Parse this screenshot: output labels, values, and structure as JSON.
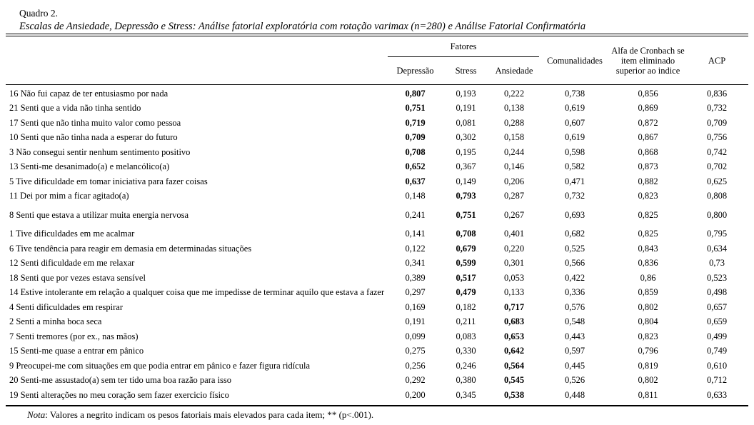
{
  "colors": {
    "text": "#000000",
    "background": "#ffffff"
  },
  "caption": {
    "number": "Quadro 2.",
    "title": "Escalas de Ansiedade, Depressão e Stress: Análise fatorial exploratória com rotação varimax (n=280) e Análise Fatorial Confirmatória"
  },
  "header": {
    "factors_group": "Fatores",
    "columns": [
      "Depressão",
      "Stress",
      "Ansiedade",
      "Comunalidades",
      "Alfa de Cronbach se item eliminado superior ao indice",
      "ACP"
    ]
  },
  "rows": [
    {
      "item": "16 Não fui capaz de ter entusiasmo por nada",
      "values": [
        "0,807",
        "0,193",
        "0,222",
        "0,738",
        "0,856",
        "0,836"
      ],
      "bold_index": 0
    },
    {
      "item": "21 Senti que a vida não tinha sentido",
      "values": [
        "0,751",
        "0,191",
        "0,138",
        "0,619",
        "0,869",
        "0,732"
      ],
      "bold_index": 0
    },
    {
      "item": "17 Senti que não tinha muito valor como pessoa",
      "values": [
        "0,719",
        "0,081",
        "0,288",
        "0,607",
        "0,872",
        "0,709"
      ],
      "bold_index": 0
    },
    {
      "item": "10 Senti que não tinha nada a esperar do futuro",
      "values": [
        "0,709",
        "0,302",
        "0,158",
        "0,619",
        "0,867",
        "0,756"
      ],
      "bold_index": 0
    },
    {
      "item": "3 Não consegui sentir nenhum sentimento positivo",
      "values": [
        "0,708",
        "0,195",
        "0,244",
        "0,598",
        "0,868",
        "0,742"
      ],
      "bold_index": 0
    },
    {
      "item": "13 Senti-me desanimado(a) e melancólico(a)",
      "values": [
        "0,652",
        "0,367",
        "0,146",
        "0,582",
        "0,873",
        "0,702"
      ],
      "bold_index": 0
    },
    {
      "item": "5 Tive dificuldade em tomar iniciativa para fazer coisas",
      "values": [
        "0,637",
        "0,149",
        "0,206",
        "0,471",
        "0,882",
        "0,625"
      ],
      "bold_index": 0
    },
    {
      "item": "11 Dei por mim a ficar agitado(a)",
      "values": [
        "0,148",
        "0,793",
        "0,287",
        "0,732",
        "0,823",
        "0,808"
      ],
      "bold_index": 1
    },
    {
      "item": "8 Senti que estava a utilizar muita energia nervosa",
      "values": [
        "0,241",
        "0,751",
        "0,267",
        "0,693",
        "0,825",
        "0,800"
      ],
      "bold_index": 1
    },
    {
      "item": "1 Tive dificuldades em me acalmar",
      "values": [
        "0,141",
        "0,708",
        "0,401",
        "0,682",
        "0,825",
        "0,795"
      ],
      "bold_index": 1
    },
    {
      "item": "6 Tive tendência para reagir em demasia em determinadas situações",
      "values": [
        "0,122",
        "0,679",
        "0,220",
        "0,525",
        "0,843",
        "0,634"
      ],
      "bold_index": 1
    },
    {
      "item": "12 Senti dificuldade em me relaxar",
      "values": [
        "0,341",
        "0,599",
        "0,301",
        "0,566",
        "0,836",
        "0,73"
      ],
      "bold_index": 1
    },
    {
      "item": "18 Senti que por vezes estava sensível",
      "values": [
        "0,389",
        "0,517",
        "0,053",
        "0,422",
        "0,86",
        "0,523"
      ],
      "bold_index": 1
    },
    {
      "item": "14 Estive intolerante em relação a qualquer coisa que me impedisse de terminar aquilo que estava a fazer",
      "values": [
        "0,297",
        "0,479",
        "0,133",
        "0,336",
        "0,859",
        "0,498"
      ],
      "bold_index": 1
    },
    {
      "item": "4 Senti dificuldades em respirar",
      "values": [
        "0,169",
        "0,182",
        "0,717",
        "0,576",
        "0,802",
        "0,657"
      ],
      "bold_index": 2
    },
    {
      "item": "2 Senti a minha boca seca",
      "values": [
        "0,191",
        "0,211",
        "0,683",
        "0,548",
        "0,804",
        "0,659"
      ],
      "bold_index": 2
    },
    {
      "item": "7 Senti tremores (por ex., nas mãos)",
      "values": [
        "0,099",
        "0,083",
        "0,653",
        "0,443",
        "0,823",
        "0,499"
      ],
      "bold_index": 2
    },
    {
      "item": "15 Senti-me quase a entrar em pânico",
      "values": [
        "0,275",
        "0,330",
        "0,642",
        "0,597",
        "0,796",
        "0,749"
      ],
      "bold_index": 2
    },
    {
      "item": "9 Preocupei-me com situações em que podia entrar em pânico e fazer figura ridícula",
      "values": [
        "0,256",
        "0,246",
        "0,564",
        "0,445",
        "0,819",
        "0,610"
      ],
      "bold_index": 2
    },
    {
      "item": "20 Senti-me assustado(a) sem ter tido uma boa razão para isso",
      "values": [
        "0,292",
        "0,380",
        "0,545",
        "0,526",
        "0,802",
        "0,712"
      ],
      "bold_index": 2
    },
    {
      "item": "19 Senti alterações no meu coração sem fazer exercicio físico",
      "values": [
        "0,200",
        "0,345",
        "0,538",
        "0,448",
        "0,811",
        "0,633"
      ],
      "bold_index": 2
    }
  ],
  "note": {
    "label": "Nota",
    "text": ": Valores a negrito indicam os pesos fatoriais mais elevados para cada item; ** (p<.001)."
  }
}
